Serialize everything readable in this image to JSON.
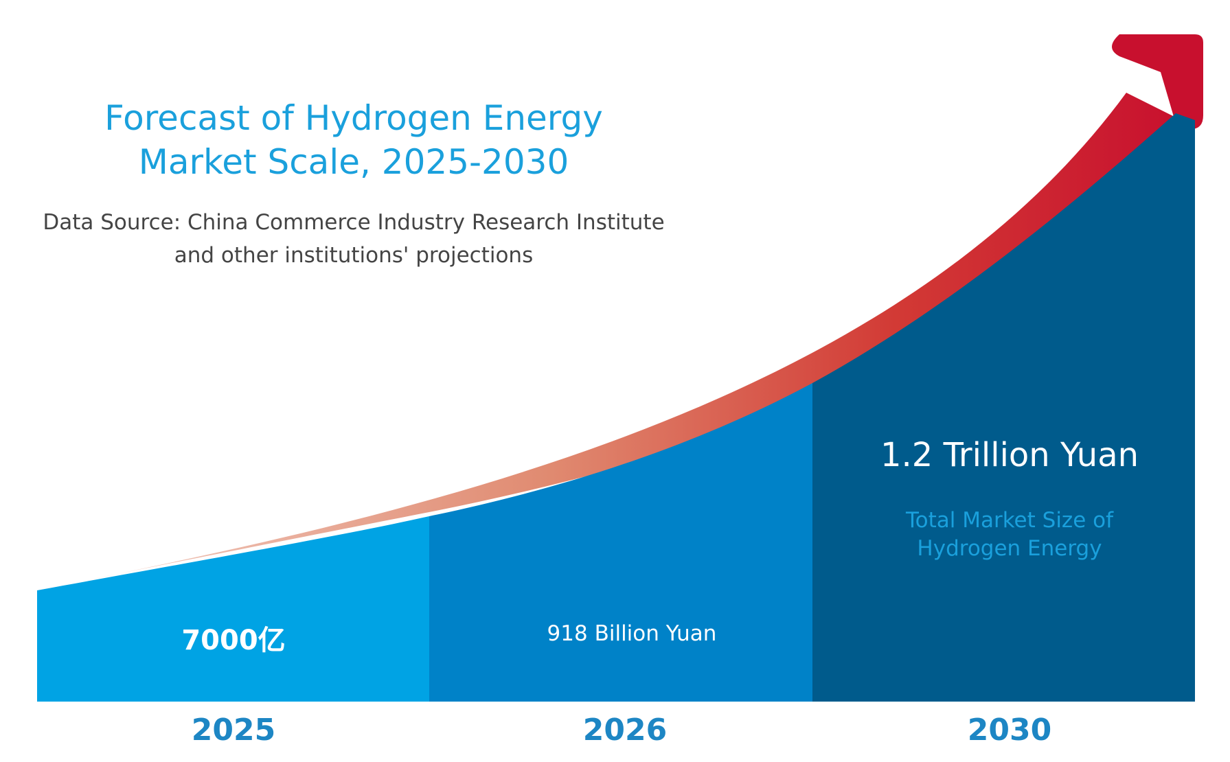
{
  "chart_data": {
    "type": "area",
    "title": "Forecast of Hydrogen Energy Market Scale, 2025-2030",
    "subtitle": "Data Source: China Commerce Industry Research Institute and other institutions' projections",
    "categories": [
      "2025",
      "2026",
      "2030"
    ],
    "values": [
      7000,
      9180,
      12000
    ],
    "value_labels": [
      "7000亿",
      "918 Billion Yuan",
      "1.2 Trillion Yuan"
    ],
    "annotation": "Total Market Size of Hydrogen Energy",
    "colors": [
      "#00a3e4",
      "#0082c8",
      "#005b8c"
    ],
    "arrow_colors": [
      "#f0c4b8",
      "#e08a70",
      "#cc2a30"
    ]
  },
  "title_lines": [
    "Forecast of Hydrogen Energy",
    "Market Scale, 2025-2030"
  ],
  "source_lines": [
    "Data Source: China Commerce Industry Research Institute",
    "and other institutions' projections"
  ]
}
